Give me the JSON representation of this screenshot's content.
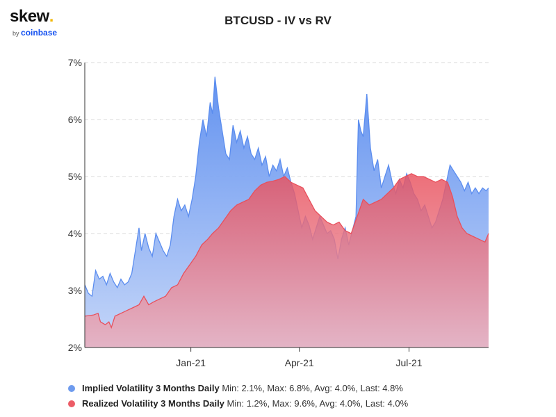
{
  "logo": {
    "word": "skew",
    "dot": ".",
    "by": "by",
    "brand": "coinbase"
  },
  "chart_data": {
    "type": "area",
    "title": "BTCUSD - IV vs RV",
    "xlabel": "",
    "ylabel": "",
    "x_range": [
      "2020-10-05",
      "2021-09-05"
    ],
    "ylim": [
      2,
      7
    ],
    "yticks": [
      2,
      3,
      4,
      5,
      6,
      7
    ],
    "ytick_labels": [
      "2%",
      "3%",
      "4%",
      "5%",
      "6%",
      "7%"
    ],
    "xticks": [
      "2021-01-01",
      "2021-04-01",
      "2021-07-01"
    ],
    "xtick_labels": [
      "Jan-21",
      "Apr-21",
      "Jul-21"
    ],
    "grid": true,
    "legend_position": "bottom-left",
    "series": [
      {
        "name": "Implied Volatility 3 Months Daily",
        "color": "#6e9bee",
        "stats": "Min: 2.1%, Max: 6.8%, Avg: 4.0%, Last: 4.8%",
        "values": [
          [
            "2020-10-05",
            3.1
          ],
          [
            "2020-10-08",
            2.95
          ],
          [
            "2020-10-11",
            2.9
          ],
          [
            "2020-10-14",
            3.35
          ],
          [
            "2020-10-17",
            3.2
          ],
          [
            "2020-10-20",
            3.25
          ],
          [
            "2020-10-23",
            3.1
          ],
          [
            "2020-10-26",
            3.3
          ],
          [
            "2020-10-29",
            3.15
          ],
          [
            "2020-11-01",
            3.05
          ],
          [
            "2020-11-04",
            3.2
          ],
          [
            "2020-11-07",
            3.1
          ],
          [
            "2020-11-10",
            3.15
          ],
          [
            "2020-11-13",
            3.3
          ],
          [
            "2020-11-16",
            3.7
          ],
          [
            "2020-11-19",
            4.1
          ],
          [
            "2020-11-21",
            3.7
          ],
          [
            "2020-11-24",
            4.0
          ],
          [
            "2020-11-27",
            3.75
          ],
          [
            "2020-11-30",
            3.6
          ],
          [
            "2020-12-03",
            4.0
          ],
          [
            "2020-12-06",
            3.85
          ],
          [
            "2020-12-09",
            3.7
          ],
          [
            "2020-12-12",
            3.6
          ],
          [
            "2020-12-15",
            3.8
          ],
          [
            "2020-12-18",
            4.3
          ],
          [
            "2020-12-21",
            4.6
          ],
          [
            "2020-12-24",
            4.4
          ],
          [
            "2020-12-27",
            4.5
          ],
          [
            "2020-12-30",
            4.3
          ],
          [
            "2021-01-02",
            4.6
          ],
          [
            "2021-01-05",
            5.0
          ],
          [
            "2021-01-08",
            5.6
          ],
          [
            "2021-01-11",
            6.0
          ],
          [
            "2021-01-14",
            5.7
          ],
          [
            "2021-01-17",
            6.3
          ],
          [
            "2021-01-19",
            6.1
          ],
          [
            "2021-01-21",
            6.75
          ],
          [
            "2021-01-24",
            6.2
          ],
          [
            "2021-01-27",
            5.8
          ],
          [
            "2021-01-30",
            5.4
          ],
          [
            "2021-02-02",
            5.3
          ],
          [
            "2021-02-05",
            5.9
          ],
          [
            "2021-02-08",
            5.6
          ],
          [
            "2021-02-11",
            5.8
          ],
          [
            "2021-02-14",
            5.5
          ],
          [
            "2021-02-17",
            5.7
          ],
          [
            "2021-02-20",
            5.4
          ],
          [
            "2021-02-23",
            5.3
          ],
          [
            "2021-02-26",
            5.5
          ],
          [
            "2021-03-01",
            5.2
          ],
          [
            "2021-03-04",
            5.35
          ],
          [
            "2021-03-07",
            5.0
          ],
          [
            "2021-03-10",
            5.2
          ],
          [
            "2021-03-13",
            5.1
          ],
          [
            "2021-03-16",
            5.3
          ],
          [
            "2021-03-19",
            5.0
          ],
          [
            "2021-03-22",
            5.15
          ],
          [
            "2021-03-25",
            4.9
          ],
          [
            "2021-03-28",
            4.7
          ],
          [
            "2021-03-31",
            4.4
          ],
          [
            "2021-04-03",
            4.1
          ],
          [
            "2021-04-06",
            4.3
          ],
          [
            "2021-04-09",
            4.15
          ],
          [
            "2021-04-12",
            3.9
          ],
          [
            "2021-04-15",
            4.1
          ],
          [
            "2021-04-18",
            4.3
          ],
          [
            "2021-04-21",
            4.15
          ],
          [
            "2021-04-24",
            4.0
          ],
          [
            "2021-04-27",
            4.05
          ],
          [
            "2021-04-30",
            3.9
          ],
          [
            "2021-05-03",
            3.55
          ],
          [
            "2021-05-06",
            3.9
          ],
          [
            "2021-05-09",
            4.1
          ],
          [
            "2021-05-12",
            3.8
          ],
          [
            "2021-05-15",
            4.05
          ],
          [
            "2021-05-18",
            4.3
          ],
          [
            "2021-05-20",
            6.0
          ],
          [
            "2021-05-22",
            5.8
          ],
          [
            "2021-05-24",
            5.7
          ],
          [
            "2021-05-27",
            6.45
          ],
          [
            "2021-05-30",
            5.5
          ],
          [
            "2021-06-02",
            5.1
          ],
          [
            "2021-06-05",
            5.3
          ],
          [
            "2021-06-08",
            4.8
          ],
          [
            "2021-06-11",
            5.0
          ],
          [
            "2021-06-14",
            5.2
          ],
          [
            "2021-06-17",
            4.9
          ],
          [
            "2021-06-20",
            4.7
          ],
          [
            "2021-06-23",
            4.95
          ],
          [
            "2021-06-26",
            4.8
          ],
          [
            "2021-06-29",
            5.05
          ],
          [
            "2021-07-02",
            4.9
          ],
          [
            "2021-07-05",
            4.7
          ],
          [
            "2021-07-08",
            4.6
          ],
          [
            "2021-07-11",
            4.4
          ],
          [
            "2021-07-14",
            4.5
          ],
          [
            "2021-07-17",
            4.3
          ],
          [
            "2021-07-20",
            4.1
          ],
          [
            "2021-07-23",
            4.2
          ],
          [
            "2021-07-26",
            4.4
          ],
          [
            "2021-07-29",
            4.6
          ],
          [
            "2021-08-01",
            4.9
          ],
          [
            "2021-08-04",
            5.2
          ],
          [
            "2021-08-07",
            5.1
          ],
          [
            "2021-08-10",
            5.0
          ],
          [
            "2021-08-13",
            4.9
          ],
          [
            "2021-08-16",
            4.75
          ],
          [
            "2021-08-19",
            4.9
          ],
          [
            "2021-08-22",
            4.7
          ],
          [
            "2021-08-25",
            4.8
          ],
          [
            "2021-08-28",
            4.7
          ],
          [
            "2021-08-31",
            4.8
          ],
          [
            "2021-09-03",
            4.75
          ],
          [
            "2021-09-05",
            4.8
          ]
        ]
      },
      {
        "name": "Realized Volatility 3 Months Daily",
        "color": "#ec5c66",
        "stats": "Min: 1.2%, Max: 9.6%, Avg: 4.0%, Last: 4.0%",
        "values": [
          [
            "2020-10-05",
            2.55
          ],
          [
            "2020-10-12",
            2.57
          ],
          [
            "2020-10-16",
            2.6
          ],
          [
            "2020-10-18",
            2.45
          ],
          [
            "2020-10-22",
            2.4
          ],
          [
            "2020-10-25",
            2.45
          ],
          [
            "2020-10-27",
            2.35
          ],
          [
            "2020-10-30",
            2.55
          ],
          [
            "2020-11-04",
            2.6
          ],
          [
            "2020-11-09",
            2.65
          ],
          [
            "2020-11-14",
            2.7
          ],
          [
            "2020-11-19",
            2.75
          ],
          [
            "2020-11-23",
            2.9
          ],
          [
            "2020-11-27",
            2.75
          ],
          [
            "2020-12-01",
            2.8
          ],
          [
            "2020-12-06",
            2.85
          ],
          [
            "2020-12-11",
            2.9
          ],
          [
            "2020-12-16",
            3.05
          ],
          [
            "2020-12-21",
            3.1
          ],
          [
            "2020-12-26",
            3.3
          ],
          [
            "2020-12-31",
            3.45
          ],
          [
            "2021-01-05",
            3.6
          ],
          [
            "2021-01-10",
            3.8
          ],
          [
            "2021-01-15",
            3.9
          ],
          [
            "2021-01-19",
            4.0
          ],
          [
            "2021-01-24",
            4.1
          ],
          [
            "2021-01-29",
            4.25
          ],
          [
            "2021-02-03",
            4.4
          ],
          [
            "2021-02-08",
            4.5
          ],
          [
            "2021-02-13",
            4.55
          ],
          [
            "2021-02-18",
            4.6
          ],
          [
            "2021-02-23",
            4.75
          ],
          [
            "2021-02-28",
            4.85
          ],
          [
            "2021-03-05",
            4.9
          ],
          [
            "2021-03-10",
            4.92
          ],
          [
            "2021-03-15",
            4.95
          ],
          [
            "2021-03-20",
            5.0
          ],
          [
            "2021-03-25",
            4.9
          ],
          [
            "2021-03-30",
            4.85
          ],
          [
            "2021-04-04",
            4.8
          ],
          [
            "2021-04-09",
            4.6
          ],
          [
            "2021-04-14",
            4.4
          ],
          [
            "2021-04-19",
            4.3
          ],
          [
            "2021-04-24",
            4.2
          ],
          [
            "2021-04-29",
            4.15
          ],
          [
            "2021-05-04",
            4.2
          ],
          [
            "2021-05-09",
            4.05
          ],
          [
            "2021-05-14",
            4.0
          ],
          [
            "2021-05-19",
            4.3
          ],
          [
            "2021-05-24",
            4.6
          ],
          [
            "2021-05-29",
            4.5
          ],
          [
            "2021-06-03",
            4.55
          ],
          [
            "2021-06-08",
            4.6
          ],
          [
            "2021-06-13",
            4.7
          ],
          [
            "2021-06-18",
            4.8
          ],
          [
            "2021-06-23",
            4.95
          ],
          [
            "2021-06-28",
            5.0
          ],
          [
            "2021-07-03",
            5.05
          ],
          [
            "2021-07-08",
            5.0
          ],
          [
            "2021-07-13",
            5.0
          ],
          [
            "2021-07-18",
            4.95
          ],
          [
            "2021-07-23",
            4.9
          ],
          [
            "2021-07-28",
            4.95
          ],
          [
            "2021-08-02",
            4.9
          ],
          [
            "2021-08-06",
            4.65
          ],
          [
            "2021-08-10",
            4.3
          ],
          [
            "2021-08-14",
            4.1
          ],
          [
            "2021-08-18",
            4.0
          ],
          [
            "2021-08-23",
            3.95
          ],
          [
            "2021-08-28",
            3.9
          ],
          [
            "2021-09-02",
            3.85
          ],
          [
            "2021-09-05",
            4.0
          ]
        ]
      }
    ]
  }
}
